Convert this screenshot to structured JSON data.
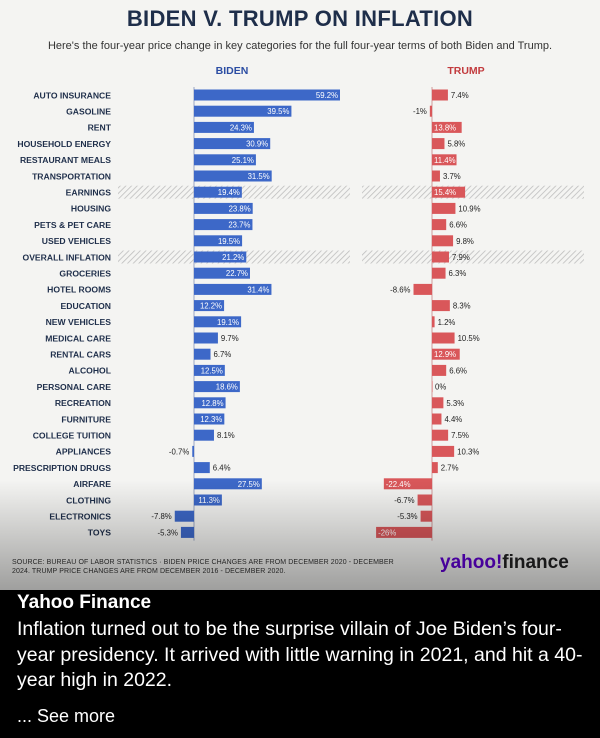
{
  "title": "BIDEN V. TRUMP ON INFLATION",
  "subtitle": "Here's the four-year price change in key categories for the full four-year terms of both Biden and Trump.",
  "source": "SOURCE: BUREAU OF LABOR STATISTICS · BIDEN PRICE CHANGES ARE FROM DECEMBER 2020 - DECEMBER 2024. TRUMP PRICE CHANGES ARE FROM DECEMBER 2016 - DECEMBER 2020.",
  "brand": {
    "part1": "yahoo!",
    "part2": "finance"
  },
  "caption": {
    "author": "Yahoo Finance",
    "text": "Inflation turned out to be the surprise villain of Joe Biden’s four-year presidency. It arrived with little warning in 2021, and hit a 40-year high in 2022.",
    "see_more": "... See more"
  },
  "colors": {
    "biden": "#3d68c8",
    "trump": "#d9575a",
    "label": "#1e2e4a"
  },
  "chart_data": {
    "type": "bar",
    "orientation": "horizontal",
    "categories": [
      "AUTO INSURANCE",
      "GASOLINE",
      "RENT",
      "HOUSEHOLD ENERGY",
      "RESTAURANT MEALS",
      "TRANSPORTATION",
      "EARNINGS",
      "HOUSING",
      "PETS & PET CARE",
      "USED VEHICLES",
      "OVERALL INFLATION",
      "GROCERIES",
      "HOTEL ROOMS",
      "EDUCATION",
      "NEW VEHICLES",
      "MEDICAL CARE",
      "RENTAL CARS",
      "ALCOHOL",
      "PERSONAL CARE",
      "RECREATION",
      "FURNITURE",
      "COLLEGE TUITION",
      "APPLIANCES",
      "PRESCRIPTION DRUGS",
      "AIRFARE",
      "CLOTHING",
      "ELECTRONICS",
      "TOYS"
    ],
    "highlighted_categories": [
      "EARNINGS",
      "OVERALL INFLATION"
    ],
    "series": [
      {
        "name": "BIDEN",
        "values": [
          59.2,
          39.5,
          24.3,
          30.9,
          25.1,
          31.5,
          19.4,
          23.8,
          23.7,
          19.5,
          21.2,
          22.7,
          31.4,
          12.2,
          19.1,
          9.7,
          6.7,
          12.5,
          18.6,
          12.8,
          12.3,
          8.1,
          -0.7,
          6.4,
          27.5,
          11.3,
          -7.8,
          -5.3
        ],
        "labels": [
          "59.2%",
          "39.5%",
          "24.3%",
          "30.9%",
          "25.1%",
          "31.5%",
          "19.4%",
          "23.8%",
          "23.7%",
          "19.5%",
          "21.2%",
          "22.7%",
          "31.4%",
          "12.2%",
          "19.1%",
          "9.7%",
          "6.7%",
          "12.5%",
          "18.6%",
          "12.8%",
          "12.3%",
          "8.1%",
          "-0.7%",
          "6.4%",
          "27.5%",
          "11.3%",
          "-7.8%",
          "-5.3%"
        ]
      },
      {
        "name": "TRUMP",
        "values": [
          7.4,
          -1,
          13.8,
          5.8,
          11.4,
          3.7,
          15.4,
          10.9,
          6.6,
          9.8,
          7.9,
          6.3,
          -8.6,
          8.3,
          1.2,
          10.5,
          12.9,
          6.6,
          0,
          5.3,
          4.4,
          7.5,
          10.3,
          2.7,
          -22.4,
          -6.7,
          -5.3,
          -26
        ],
        "labels": [
          "7.4%",
          "-1%",
          "13.8%",
          "5.8%",
          "11.4%",
          "3.7%",
          "15.4%",
          "10.9%",
          "6.6%",
          "9.8%",
          "7.9%",
          "6.3%",
          "-8.6%",
          "8.3%",
          "1.2%",
          "10.5%",
          "12.9%",
          "6.6%",
          "0%",
          "5.3%",
          "4.4%",
          "7.5%",
          "10.3%",
          "2.7%",
          "-22.4%",
          "-6.7%",
          "-5.3%",
          "-26%"
        ]
      }
    ]
  }
}
